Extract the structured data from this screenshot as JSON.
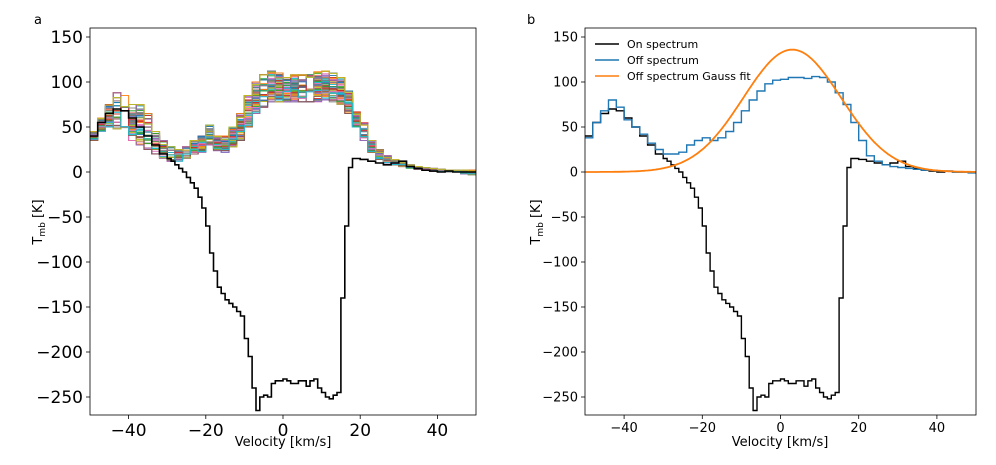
{
  "chart_data": [
    {
      "panel_label": "a",
      "type": "line",
      "style": "step",
      "xlabel": "Velocity [km/s]",
      "ylabel": "T",
      "ylabel_sub": "mb",
      "ylabel_unit": "[K]",
      "xlim": [
        -50,
        50
      ],
      "ylim": [
        -270,
        160
      ],
      "xticks": [
        -40,
        -20,
        0,
        20,
        40
      ],
      "yticks": [
        150,
        100,
        50,
        0,
        -50,
        -100,
        -150,
        -200,
        -250
      ],
      "grid": false,
      "legend": "none",
      "on_spectrum": {
        "color": "#000000",
        "x": [
          -50,
          -48,
          -46,
          -44,
          -42,
          -40,
          -38,
          -36,
          -34,
          -32,
          -30,
          -29,
          -28,
          -27,
          -26,
          -25,
          -24,
          -23,
          -22,
          -21,
          -20,
          -19,
          -18,
          -17,
          -16,
          -15,
          -14,
          -13,
          -12,
          -11,
          -10,
          -9,
          -8,
          -7,
          -6,
          -5,
          -4,
          -3,
          -2,
          -1,
          0,
          1,
          2,
          3,
          4,
          5,
          6,
          7,
          8,
          9,
          10,
          11,
          12,
          13,
          14,
          15,
          16,
          17,
          18,
          20,
          22,
          24,
          26,
          28,
          30,
          32,
          34,
          36,
          38,
          40,
          42,
          44,
          46,
          48,
          50
        ],
        "y": [
          40,
          55,
          65,
          70,
          68,
          60,
          50,
          40,
          30,
          20,
          15,
          12,
          8,
          4,
          0,
          -6,
          -12,
          -18,
          -28,
          -40,
          -60,
          -90,
          -110,
          -128,
          -135,
          -142,
          -146,
          -150,
          -155,
          -160,
          -185,
          -205,
          -240,
          -265,
          -250,
          -248,
          -250,
          -235,
          -232,
          -232,
          -230,
          -232,
          -235,
          -235,
          -232,
          -232,
          -238,
          -232,
          -230,
          -240,
          -245,
          -250,
          -252,
          -248,
          -245,
          -140,
          -60,
          5,
          15,
          14,
          12,
          10,
          8,
          10,
          12,
          6,
          4,
          2,
          1,
          0,
          1,
          0,
          0,
          0,
          0
        ]
      },
      "off_spectra_band": {
        "description": "",
        "x": [
          -50,
          -48,
          -46,
          -44,
          -42,
          -40,
          -38,
          -36,
          -34,
          -32,
          -30,
          -28,
          -26,
          -24,
          -22,
          -20,
          -18,
          -16,
          -14,
          -12,
          -10,
          -8,
          -6,
          -4,
          -2,
          0,
          2,
          4,
          6,
          8,
          10,
          12,
          14,
          16,
          18,
          20,
          22,
          24,
          26,
          28,
          30,
          32,
          34,
          36,
          38,
          40,
          42,
          44,
          46,
          48,
          50
        ],
        "y_low": [
          35,
          45,
          50,
          48,
          40,
          35,
          30,
          25,
          20,
          15,
          12,
          12,
          15,
          20,
          22,
          30,
          22,
          22,
          28,
          35,
          50,
          65,
          72,
          78,
          78,
          78,
          78,
          78,
          78,
          78,
          80,
          78,
          75,
          65,
          50,
          35,
          22,
          14,
          10,
          8,
          6,
          4,
          3,
          2,
          1,
          0,
          0,
          0,
          -2,
          -3,
          -4
        ],
        "y_high": [
          45,
          60,
          75,
          88,
          85,
          75,
          75,
          65,
          45,
          35,
          28,
          25,
          28,
          35,
          40,
          52,
          40,
          40,
          50,
          65,
          85,
          100,
          108,
          112,
          110,
          105,
          108,
          108,
          110,
          112,
          112,
          110,
          105,
          90,
          70,
          55,
          35,
          25,
          18,
          14,
          12,
          8,
          6,
          5,
          4,
          3,
          2,
          2,
          2,
          2,
          2
        ]
      }
    },
    {
      "panel_label": "b",
      "type": "line",
      "style": "step",
      "xlabel": "Velocity [km/s]",
      "ylabel": "T",
      "ylabel_sub": "mb",
      "ylabel_unit": "[K]",
      "xlim": [
        -50,
        50
      ],
      "ylim": [
        -270,
        160
      ],
      "xticks": [
        -40,
        -20,
        0,
        20,
        40
      ],
      "yticks": [
        150,
        100,
        50,
        0,
        -50,
        -100,
        -150,
        -200,
        -250
      ],
      "grid": false,
      "legend": "top-left",
      "series": [
        {
          "name": "On spectrum",
          "color": "#000000",
          "style": "step",
          "x": [
            -50,
            -48,
            -46,
            -44,
            -42,
            -40,
            -38,
            -36,
            -34,
            -32,
            -30,
            -29,
            -28,
            -27,
            -26,
            -25,
            -24,
            -23,
            -22,
            -21,
            -20,
            -19,
            -18,
            -17,
            -16,
            -15,
            -14,
            -13,
            -12,
            -11,
            -10,
            -9,
            -8,
            -7,
            -6,
            -5,
            -4,
            -3,
            -2,
            -1,
            0,
            1,
            2,
            3,
            4,
            5,
            6,
            7,
            8,
            9,
            10,
            11,
            12,
            13,
            14,
            15,
            16,
            17,
            18,
            20,
            22,
            24,
            26,
            28,
            30,
            32,
            34,
            36,
            38,
            40,
            42,
            44,
            46,
            48,
            50
          ],
          "y": [
            40,
            55,
            65,
            70,
            68,
            60,
            50,
            40,
            30,
            20,
            15,
            12,
            8,
            4,
            0,
            -6,
            -12,
            -18,
            -28,
            -40,
            -60,
            -90,
            -110,
            -128,
            -135,
            -142,
            -146,
            -150,
            -155,
            -160,
            -185,
            -205,
            -240,
            -265,
            -250,
            -248,
            -250,
            -235,
            -232,
            -232,
            -230,
            -232,
            -235,
            -235,
            -232,
            -232,
            -238,
            -232,
            -230,
            -240,
            -245,
            -250,
            -252,
            -248,
            -245,
            -140,
            -60,
            5,
            15,
            14,
            12,
            10,
            8,
            10,
            12,
            6,
            4,
            2,
            1,
            0,
            1,
            0,
            0,
            0,
            0
          ]
        },
        {
          "name": "Off spectrum",
          "color": "#1f77b4",
          "style": "step",
          "x": [
            -50,
            -48,
            -46,
            -44,
            -42,
            -40,
            -38,
            -36,
            -34,
            -32,
            -30,
            -28,
            -26,
            -24,
            -22,
            -20,
            -18,
            -16,
            -14,
            -12,
            -10,
            -8,
            -6,
            -4,
            -2,
            0,
            2,
            4,
            6,
            8,
            10,
            12,
            14,
            16,
            18,
            20,
            22,
            24,
            26,
            28,
            30,
            32,
            34,
            36,
            38,
            40,
            42,
            44,
            46,
            48,
            50
          ],
          "y": [
            38,
            55,
            68,
            80,
            72,
            58,
            50,
            42,
            32,
            25,
            20,
            20,
            22,
            30,
            35,
            38,
            35,
            38,
            45,
            55,
            68,
            80,
            90,
            98,
            102,
            103,
            105,
            105,
            104,
            106,
            105,
            100,
            88,
            75,
            55,
            35,
            18,
            12,
            8,
            6,
            5,
            4,
            3,
            2,
            2,
            1,
            1,
            0,
            0,
            -1,
            -2
          ]
        },
        {
          "name": "Off spectrum Gauss fit",
          "color": "#ff7f0e",
          "style": "gaussian",
          "amplitude": 136,
          "center": 3,
          "sigma": 12.5
        }
      ]
    }
  ]
}
